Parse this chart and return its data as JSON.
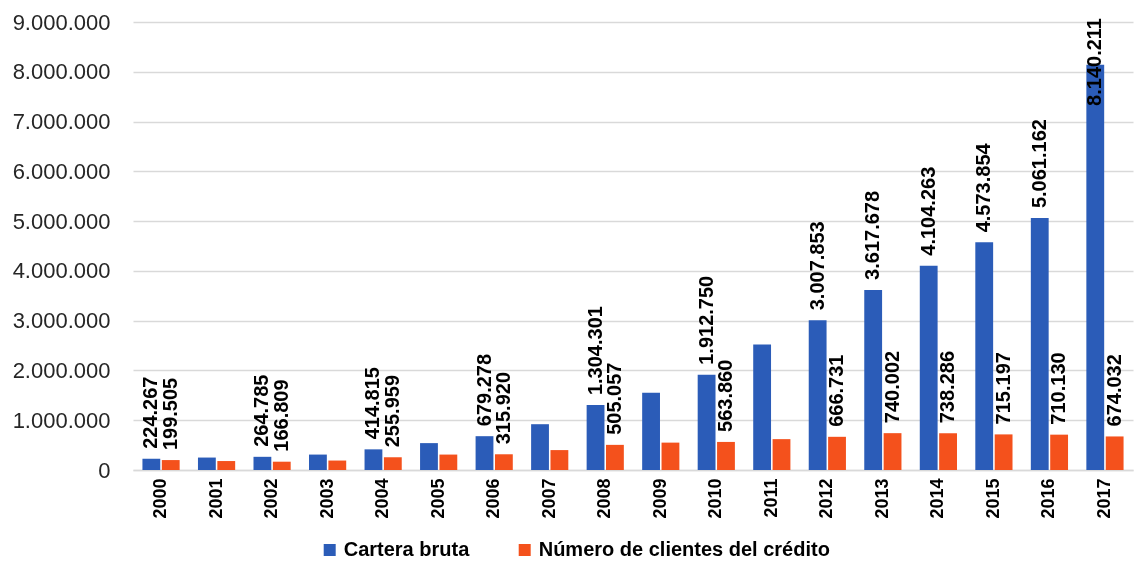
{
  "chart_data": {
    "type": "bar",
    "categories": [
      "2000",
      "2001",
      "2002",
      "2003",
      "2004",
      "2005",
      "2006",
      "2007",
      "2008",
      "2009",
      "2010",
      "2011",
      "2012",
      "2013",
      "2014",
      "2015",
      "2016",
      "2017"
    ],
    "series": [
      {
        "name": "Cartera bruta",
        "color": "#2b5cb8",
        "values": [
          224267,
          250000,
          264785,
          310000,
          414815,
          540000,
          679278,
          920000,
          1304301,
          1550000,
          1912750,
          2520000,
          3007853,
          3617678,
          4104263,
          4573854,
          5061162,
          8140211
        ],
        "value_labels": [
          "224.267",
          null,
          "264.785",
          null,
          "414.815",
          null,
          "679.278",
          null,
          "1.304.301",
          null,
          "1.912.750",
          null,
          "3.007.853",
          "3.617.678",
          "4.104.263",
          "4.573.854",
          "5.061.162",
          "8.140.211"
        ]
      },
      {
        "name": "Número de clientes del crédito",
        "color": "#f4511c",
        "values": [
          199505,
          180000,
          166809,
          190000,
          255959,
          310000,
          315920,
          400000,
          505057,
          550000,
          563860,
          620000,
          666731,
          740002,
          738286,
          715197,
          710130,
          674032
        ],
        "value_labels": [
          "199.505",
          null,
          "166.809",
          null,
          "255.959",
          null,
          "315.920",
          null,
          "505.057",
          null,
          "563.860",
          null,
          "666.731",
          "740.002",
          "738.286",
          "715.197",
          "710.130",
          "674.032"
        ]
      }
    ],
    "ylim": [
      0,
      9000000
    ],
    "yticks": [
      0,
      {
        "value": 1000000,
        "label": "1.000.000"
      },
      {
        "value": 2000000,
        "label": "2.000.000"
      },
      {
        "value": 3000000,
        "label": "3.000.000"
      },
      {
        "value": 4000000,
        "label": "4.000.000"
      },
      {
        "value": 5000000,
        "label": "5.000.000"
      },
      {
        "value": 6000000,
        "label": "6.000.000"
      },
      {
        "value": 7000000,
        "label": "7.000.000"
      },
      {
        "value": 8000000,
        "label": "8.000.000"
      },
      {
        "value": 9000000,
        "label": "9.000.000"
      }
    ],
    "grid": "y",
    "legend": "bottom"
  }
}
